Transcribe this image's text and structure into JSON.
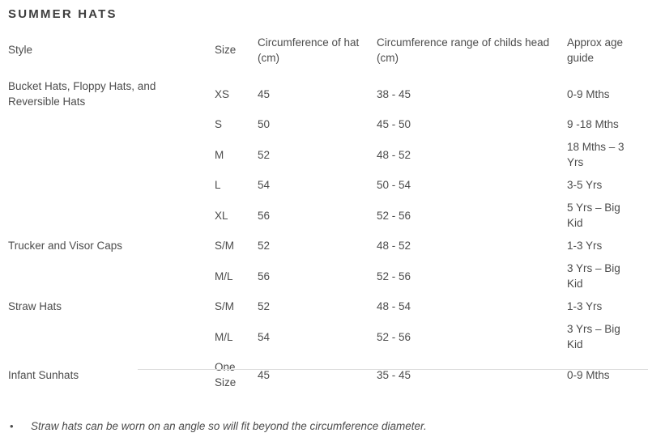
{
  "page": {
    "title": "SUMMER HATS"
  },
  "chart_data": {
    "type": "table",
    "title": "SUMMER HATS",
    "columns": [
      "Style",
      "Size",
      "Circumference of hat (cm)",
      "Circumference range of childs head (cm)",
      "Approx age guide"
    ],
    "rows": [
      {
        "style": "Bucket Hats, Floppy Hats, and Reversible Hats",
        "size": "XS",
        "hat_cm": "45",
        "head_range_cm": "38 - 45",
        "age": "0-9 Mths"
      },
      {
        "style": "",
        "size": "S",
        "hat_cm": "50",
        "head_range_cm": "45 - 50",
        "age": "9 -18 Mths"
      },
      {
        "style": "",
        "size": "M",
        "hat_cm": "52",
        "head_range_cm": "48 - 52",
        "age": "18 Mths – 3 Yrs"
      },
      {
        "style": "",
        "size": "L",
        "hat_cm": "54",
        "head_range_cm": "50 - 54",
        "age": "3-5 Yrs"
      },
      {
        "style": "",
        "size": "XL",
        "hat_cm": "56",
        "head_range_cm": "52 - 56",
        "age": "5 Yrs – Big Kid"
      },
      {
        "style": "Trucker and Visor Caps",
        "size": "S/M",
        "hat_cm": "52",
        "head_range_cm": "48 - 52",
        "age": "1-3 Yrs"
      },
      {
        "style": "",
        "size": "M/L",
        "hat_cm": "56",
        "head_range_cm": "52 - 56",
        "age": "3 Yrs – Big Kid"
      },
      {
        "style": "Straw Hats",
        "size": "S/M",
        "hat_cm": "52",
        "head_range_cm": "48 - 54",
        "age": "1-3 Yrs"
      },
      {
        "style": "",
        "size": "M/L",
        "hat_cm": "54",
        "head_range_cm": "52 - 56",
        "age": "3 Yrs – Big Kid"
      },
      {
        "style": "Infant Sunhats",
        "size": "One Size",
        "hat_cm": "45",
        "head_range_cm": "35 - 45",
        "age": "0-9 Mths"
      }
    ]
  },
  "footnote": {
    "marker": "•",
    "text": "Straw hats can be worn on an angle so will fit beyond the circumference diameter."
  }
}
